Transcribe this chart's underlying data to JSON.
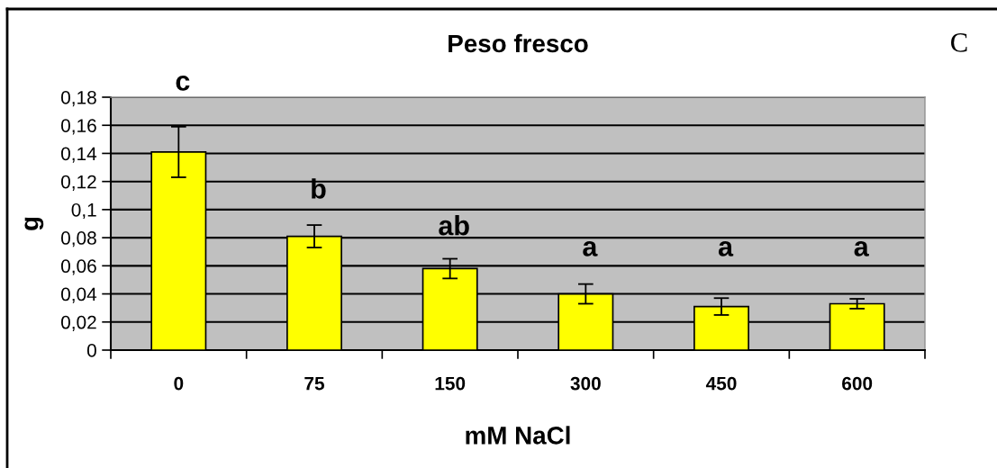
{
  "chart_data": {
    "type": "bar",
    "title": "Peso fresco",
    "xlabel": "mM NaCl",
    "ylabel": "g",
    "categories": [
      "0",
      "75",
      "150",
      "300",
      "450",
      "600"
    ],
    "values": [
      0.141,
      0.081,
      0.058,
      0.04,
      0.031,
      0.033
    ],
    "errors": [
      0.018,
      0.008,
      0.007,
      0.007,
      0.006,
      0.0035
    ],
    "color": "#ffff00",
    "ylim": [
      0,
      0.18
    ],
    "yticks": [
      0,
      {
        "value": 0.02,
        "label": "0,02"
      },
      {
        "value": 0.04,
        "label": "0,04"
      },
      {
        "value": 0.06,
        "label": "0,06"
      },
      {
        "value": 0.08,
        "label": "0,08"
      },
      {
        "value": 0.1,
        "label": "0,1"
      },
      {
        "value": 0.12,
        "label": "0,12"
      },
      {
        "value": 0.14,
        "label": "0,14"
      },
      {
        "value": 0.16,
        "label": "0,16"
      },
      {
        "value": 0.18,
        "label": "0,18"
      }
    ],
    "grid": "y",
    "annotations": [
      "c",
      "b",
      "ab",
      "a",
      "a",
      "a",
      "C"
    ]
  }
}
